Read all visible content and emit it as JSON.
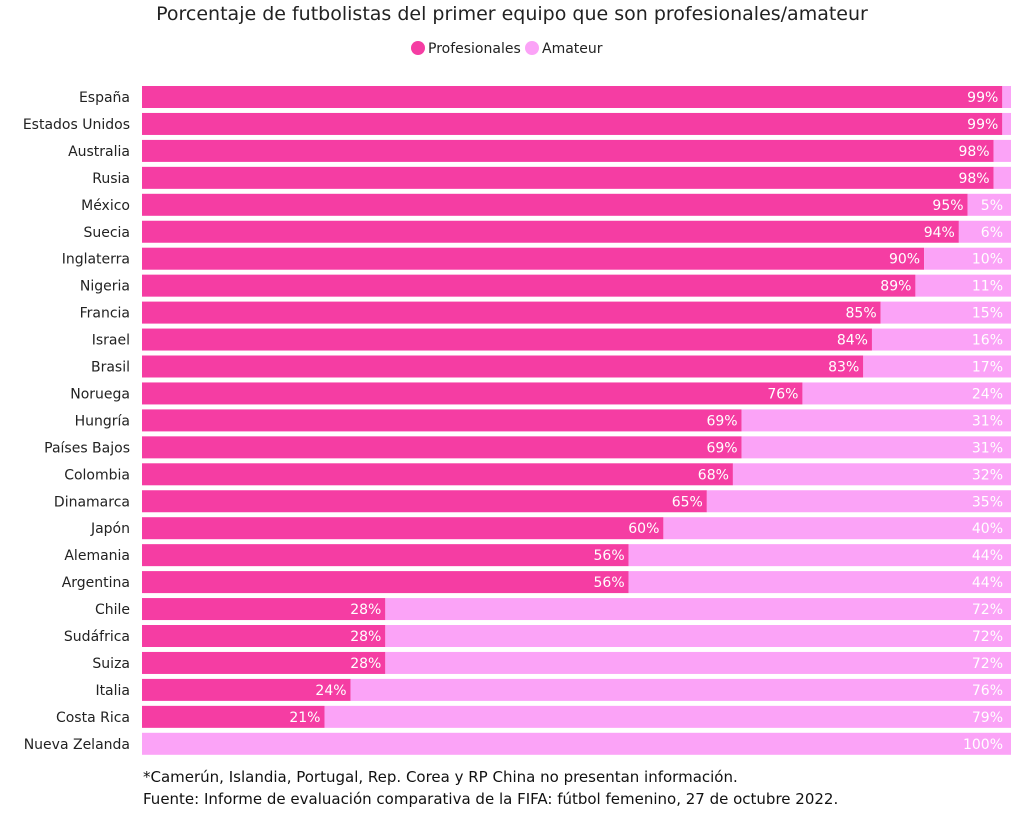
{
  "chart_data": {
    "type": "bar",
    "orientation": "horizontal",
    "stacked": true,
    "title": "Porcentaje de futbolistas del primer equipo que son profesionales/amateur",
    "legend_position": "top-center",
    "xlim": [
      0,
      100
    ],
    "categories": [
      "España",
      "Estados Unidos",
      "Australia",
      "Rusia",
      "México",
      "Suecia",
      "Inglaterra",
      "Nigeria",
      "Francia",
      "Israel",
      "Brasil",
      "Noruega",
      "Hungría",
      "Países Bajos",
      "Colombia",
      "Dinamarca",
      "Japón",
      "Alemania",
      "Argentina",
      "Chile",
      "Sudáfrica",
      "Suiza",
      "Italia",
      "Costa Rica",
      "Nueva Zelanda"
    ],
    "series": [
      {
        "name": "Profesionales",
        "color": "#f53da3",
        "values": [
          99,
          99,
          98,
          98,
          95,
          94,
          90,
          89,
          85,
          84,
          83,
          76,
          69,
          69,
          68,
          65,
          60,
          56,
          56,
          28,
          28,
          28,
          24,
          21,
          0
        ],
        "labels": [
          "99%",
          "99%",
          "98%",
          "98%",
          "95%",
          "94%",
          "90%",
          "89%",
          "85%",
          "84%",
          "83%",
          "76%",
          "69%",
          "69%",
          "68%",
          "65%",
          "60%",
          "56%",
          "56%",
          "28%",
          "28%",
          "28%",
          "24%",
          "21%",
          ""
        ]
      },
      {
        "name": "Amateur",
        "color": "#fba3f7",
        "values": [
          1,
          1,
          2,
          2,
          5,
          6,
          10,
          11,
          15,
          16,
          17,
          24,
          31,
          31,
          32,
          35,
          40,
          44,
          44,
          72,
          72,
          72,
          76,
          79,
          100
        ],
        "labels": [
          "",
          "",
          "",
          "",
          "5%",
          "6%",
          "10%",
          "11%",
          "15%",
          "16%",
          "17%",
          "24%",
          "31%",
          "31%",
          "32%",
          "35%",
          "40%",
          "44%",
          "44%",
          "72%",
          "72%",
          "72%",
          "76%",
          "79%",
          "100%"
        ]
      }
    ]
  },
  "footnotes": {
    "note": "*Camerún, Islandia, Portugal, Rep. Corea y RP China no presentan información.",
    "source": "Fuente: Informe de evaluación comparativa de la FIFA: fútbol femenino, 27 de octubre 2022."
  }
}
